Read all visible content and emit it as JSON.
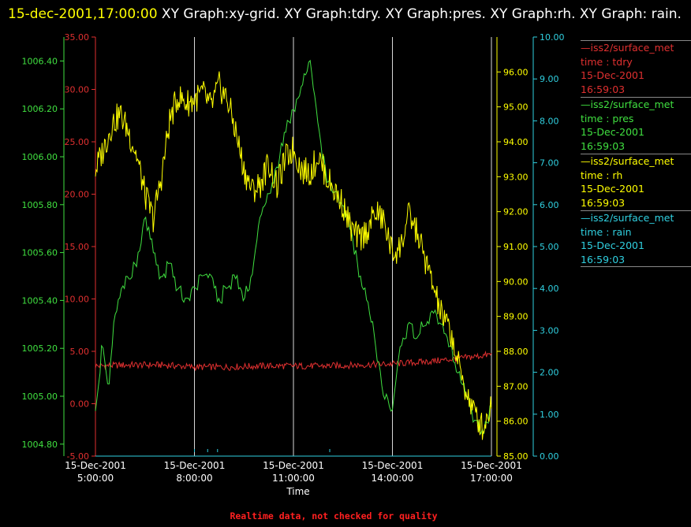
{
  "header": {
    "timestamp": "15-dec-2001,17:00:00",
    "title": "XY Graph:xy-grid.  XY Graph:tdry.  XY Graph:pres.  XY Graph:rh.  XY Graph: rain."
  },
  "footer": "Realtime data, not checked for quality",
  "colors": {
    "tdry": "#e03030",
    "pres": "#40e040",
    "rh": "#ffff00",
    "rain": "#30d0e0",
    "grid": "#d8d8d8"
  },
  "legend": [
    {
      "name": "—iss2/surface_met",
      "field": "time : tdry",
      "date": "15-Dec-2001",
      "time": "16:59:03",
      "color": "#e03030"
    },
    {
      "name": "—iss2/surface_met",
      "field": "time : pres",
      "date": "15-Dec-2001",
      "time": "16:59:03",
      "color": "#40e040"
    },
    {
      "name": "—iss2/surface_met",
      "field": "time : rh",
      "date": "15-Dec-2001",
      "time": "16:59:03",
      "color": "#ffff00"
    },
    {
      "name": "—iss2/surface_met",
      "field": "time : rain",
      "date": "15-Dec-2001",
      "time": "16:59:03",
      "color": "#30d0e0"
    }
  ],
  "chart_data": {
    "type": "line",
    "xlabel": "Time",
    "x_ticks": [
      {
        "date": "15-Dec-2001",
        "time": "5:00:00"
      },
      {
        "date": "15-Dec-2001",
        "time": "8:00:00"
      },
      {
        "date": "15-Dec-2001",
        "time": "11:00:00"
      },
      {
        "date": "15-Dec-2001",
        "time": "14:00:00"
      },
      {
        "date": "15-Dec-2001",
        "time": "17:00:00"
      }
    ],
    "xlim": [
      "15-Dec-2001 5:00:00",
      "15-Dec-2001 17:00:00"
    ],
    "grid": "vertical",
    "axes": {
      "tdry": {
        "ylim": [
          -5,
          35
        ],
        "ticks": [
          "-5.00",
          "0.00",
          "5.00",
          "10.00",
          "15.00",
          "20.00",
          "25.00",
          "30.00",
          "35.00"
        ]
      },
      "pres": {
        "ylim": [
          1004.75,
          1006.5
        ],
        "ticks": [
          "1004.80",
          "1005.00",
          "1005.20",
          "1005.40",
          "1005.60",
          "1005.80",
          "1006.00",
          "1006.20",
          "1006.40"
        ]
      },
      "rh": {
        "ylim": [
          85,
          97
        ],
        "ticks": [
          "85.00",
          "86.00",
          "87.00",
          "88.00",
          "89.00",
          "90.00",
          "91.00",
          "92.00",
          "93.00",
          "94.00",
          "95.00",
          "96.00"
        ]
      },
      "rain": {
        "ylim": [
          0,
          10
        ],
        "ticks": [
          "0.00",
          "1.00",
          "2.00",
          "3.00",
          "4.00",
          "5.00",
          "6.00",
          "7.00",
          "8.00",
          "9.00",
          "10.00"
        ]
      }
    },
    "series": [
      {
        "name": "tdry",
        "x_hours": [
          5,
          6,
          7,
          8,
          9,
          10,
          11,
          12,
          13,
          14,
          15,
          16,
          17
        ],
        "values": [
          3.6,
          3.7,
          3.7,
          3.5,
          3.5,
          3.6,
          3.6,
          3.6,
          3.7,
          3.8,
          4.0,
          4.3,
          4.7
        ]
      },
      {
        "name": "pres",
        "x_hours": [
          5,
          5.2,
          5.4,
          5.6,
          5.8,
          6.0,
          6.25,
          6.5,
          6.75,
          7.0,
          7.25,
          7.5,
          7.75,
          8.0,
          8.25,
          8.5,
          8.75,
          9.0,
          9.25,
          9.5,
          9.75,
          10.0,
          10.25,
          10.5,
          10.75,
          11.0,
          11.25,
          11.5,
          11.75,
          12.0,
          12.25,
          12.5,
          12.75,
          13.0,
          13.25,
          13.5,
          13.75,
          14.0,
          14.25,
          14.5,
          14.75,
          15.0,
          15.25,
          15.5,
          15.75,
          16.0,
          16.25,
          16.5,
          16.75,
          17.0
        ],
        "values": [
          1004.95,
          1005.2,
          1005.05,
          1005.35,
          1005.45,
          1005.5,
          1005.55,
          1005.75,
          1005.6,
          1005.5,
          1005.55,
          1005.45,
          1005.4,
          1005.45,
          1005.5,
          1005.5,
          1005.4,
          1005.45,
          1005.5,
          1005.4,
          1005.5,
          1005.75,
          1005.85,
          1005.95,
          1006.1,
          1006.2,
          1006.3,
          1006.4,
          1006.15,
          1005.9,
          1005.85,
          1005.8,
          1005.7,
          1005.5,
          1005.4,
          1005.2,
          1005.0,
          1004.95,
          1005.2,
          1005.3,
          1005.25,
          1005.3,
          1005.35,
          1005.3,
          1005.2,
          1005.1,
          1005.0,
          1004.9,
          1004.85,
          1004.95
        ]
      },
      {
        "name": "rh",
        "x_hours": [
          5,
          5.25,
          5.5,
          5.75,
          6.0,
          6.25,
          6.5,
          6.75,
          7.0,
          7.25,
          7.5,
          7.75,
          8.0,
          8.25,
          8.5,
          8.75,
          9.0,
          9.25,
          9.5,
          9.75,
          10.0,
          10.25,
          10.5,
          10.75,
          11.0,
          11.25,
          11.5,
          11.75,
          12.0,
          12.25,
          12.5,
          12.75,
          13.0,
          13.25,
          13.5,
          13.75,
          14.0,
          14.25,
          14.5,
          14.75,
          15.0,
          15.25,
          15.5,
          15.75,
          16.0,
          16.25,
          16.5,
          16.75,
          17.0
        ],
        "values": [
          93.2,
          93.8,
          94.5,
          94.8,
          94.3,
          93.6,
          92.5,
          91.8,
          93.0,
          94.6,
          95.3,
          95.1,
          95.2,
          95.4,
          95.0,
          95.6,
          95.2,
          94.3,
          93.2,
          92.6,
          92.8,
          93.4,
          92.7,
          93.5,
          93.8,
          93.2,
          93.1,
          93.6,
          93.0,
          92.6,
          92.2,
          91.5,
          91.2,
          91.5,
          92.0,
          91.7,
          90.8,
          91.0,
          91.9,
          91.4,
          90.6,
          89.8,
          89.0,
          88.6,
          87.6,
          86.8,
          86.2,
          85.8,
          86.5
        ]
      },
      {
        "name": "rain",
        "x_hours": [
          5,
          17
        ],
        "values": [
          0,
          0
        ]
      }
    ]
  }
}
